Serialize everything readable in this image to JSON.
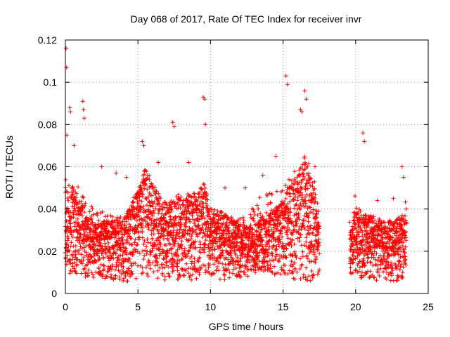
{
  "chart_data": {
    "type": "scatter",
    "title": "Day 068 of 2017, Rate Of TEC Index for receiver invr",
    "xlabel": "GPS time / hours",
    "ylabel": "ROTI / TECUs",
    "xlim": [
      0,
      25
    ],
    "ylim": [
      0,
      0.12
    ],
    "xticks": [
      0,
      5,
      10,
      15,
      20,
      25
    ],
    "yticks": [
      0,
      0.02,
      0.04,
      0.06,
      0.08,
      0.1,
      0.12
    ],
    "xtick_labels": [
      "0",
      "5",
      "10",
      "15",
      "20",
      "25"
    ],
    "ytick_labels": [
      "0",
      "0.02",
      "0.04",
      "0.06",
      "0.08",
      "0.1",
      "0.12"
    ],
    "grid": true,
    "marker": "+",
    "color": "#ff0000",
    "data_gap_hours": [
      17.5,
      19.6
    ],
    "series": [
      {
        "name": "ROTI",
        "x": [
          0.05,
          0.08,
          0.1,
          0.3,
          0.35,
          0.6,
          1.2,
          1.25,
          1.3,
          7.4,
          7.5,
          9.5,
          9.6,
          9.65,
          15.2,
          15.3,
          16.2,
          16.3,
          16.5,
          16.6,
          5.3,
          5.4,
          20.5,
          20.6,
          23.2,
          23.3,
          2.5,
          3.5,
          4.2,
          6.4,
          8.5,
          11.0,
          12.4,
          13.6,
          14.5,
          17.2,
          21.5,
          22.6
        ],
        "y": [
          0.116,
          0.107,
          0.075,
          0.088,
          0.086,
          0.07,
          0.091,
          0.087,
          0.083,
          0.081,
          0.079,
          0.093,
          0.092,
          0.08,
          0.103,
          0.099,
          0.087,
          0.086,
          0.096,
          0.092,
          0.072,
          0.07,
          0.076,
          0.072,
          0.06,
          0.055,
          0.06,
          0.057,
          0.055,
          0.062,
          0.062,
          0.05,
          0.05,
          0.056,
          0.065,
          0.06,
          0.044,
          0.045
        ]
      }
    ],
    "density_envelope": {
      "hours": [
        0,
        0.5,
        1,
        2,
        3,
        4,
        5,
        5.5,
        6,
        7,
        7.5,
        8,
        9,
        9.5,
        10,
        11,
        12,
        12.8,
        13,
        14,
        15,
        15.5,
        16,
        16.5,
        17,
        17.4,
        19.7,
        20,
        20.5,
        21,
        22,
        23,
        23.5
      ],
      "low": [
        0.01,
        0.008,
        0.008,
        0.007,
        0.007,
        0.005,
        0.007,
        0.008,
        0.007,
        0.006,
        0.006,
        0.006,
        0.006,
        0.006,
        0.007,
        0.006,
        0.007,
        0.008,
        0.01,
        0.009,
        0.008,
        0.007,
        0.006,
        0.005,
        0.006,
        0.008,
        0.008,
        0.007,
        0.007,
        0.006,
        0.006,
        0.006,
        0.006
      ],
      "mid": [
        0.022,
        0.03,
        0.026,
        0.02,
        0.021,
        0.02,
        0.028,
        0.034,
        0.03,
        0.024,
        0.026,
        0.027,
        0.027,
        0.03,
        0.024,
        0.022,
        0.02,
        0.02,
        0.022,
        0.024,
        0.026,
        0.029,
        0.032,
        0.034,
        0.03,
        0.022,
        0.019,
        0.024,
        0.022,
        0.022,
        0.02,
        0.021,
        0.022
      ],
      "high": [
        0.06,
        0.055,
        0.05,
        0.04,
        0.038,
        0.036,
        0.05,
        0.055,
        0.045,
        0.04,
        0.045,
        0.045,
        0.048,
        0.05,
        0.042,
        0.038,
        0.036,
        0.038,
        0.045,
        0.048,
        0.05,
        0.055,
        0.06,
        0.065,
        0.06,
        0.045,
        0.035,
        0.048,
        0.04,
        0.036,
        0.034,
        0.036,
        0.045
      ]
    }
  }
}
